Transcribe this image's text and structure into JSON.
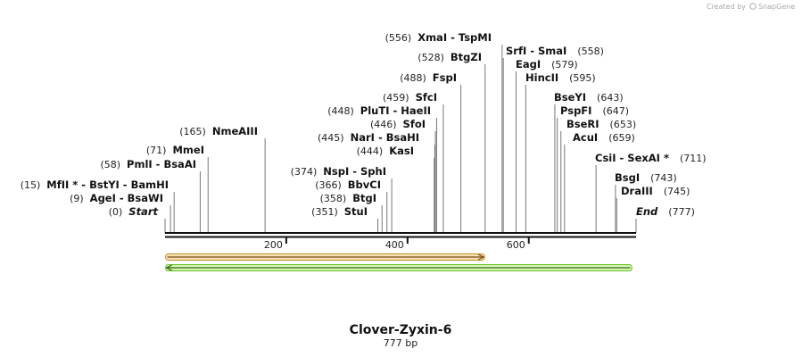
{
  "branding": {
    "text": "Created by",
    "product": "SnapGene"
  },
  "sequence": {
    "name": "Clover-Zyxin-6",
    "length_label": "777 bp",
    "length_bp": 777
  },
  "axis": {
    "ticks": [
      {
        "bp": 200,
        "label": "200"
      },
      {
        "bp": 400,
        "label": "400"
      },
      {
        "bp": 600,
        "label": "600"
      }
    ]
  },
  "features": [
    {
      "name": "forward-feature",
      "start": 1,
      "end": 527,
      "direction": "forward",
      "fill": "#f6e3b8",
      "stroke": "#c98a1c",
      "line": "#7a4a12"
    },
    {
      "name": "reverse-feature",
      "start": 1,
      "end": 770,
      "direction": "reverse",
      "fill": "#d8f5b4",
      "stroke": "#5fbf1f",
      "line": "#2e6b10"
    }
  ],
  "sites": [
    {
      "pos": "(0)",
      "label": "Start",
      "italic": true,
      "bp": 0
    },
    {
      "pos": "(9)",
      "label": "AgeI  -  BsaWI",
      "bp": 9
    },
    {
      "pos": "(15)",
      "label": "MfII *  -  BstYI  -  BamHI",
      "bp": 15
    },
    {
      "pos": "(58)",
      "label": "PmlI  -  BsaAI",
      "bp": 58
    },
    {
      "pos": "(71)",
      "label": "MmeI",
      "bp": 71
    },
    {
      "pos": "(165)",
      "label": "NmeAIII",
      "bp": 165
    },
    {
      "pos": "(351)",
      "label": "StuI",
      "bp": 351
    },
    {
      "pos": "(358)",
      "label": "BtgI",
      "bp": 358
    },
    {
      "pos": "(366)",
      "label": "BbvCI",
      "bp": 366
    },
    {
      "pos": "(374)",
      "label": "NspI  -  SphI",
      "bp": 374
    },
    {
      "pos": "(444)",
      "label": "KasI",
      "bp": 444
    },
    {
      "pos": "(445)",
      "label": "NarI  -  BsaHI",
      "bp": 445
    },
    {
      "pos": "(446)",
      "label": "SfoI",
      "bp": 446
    },
    {
      "pos": "(448)",
      "label": "PluTI  -  HaeII",
      "bp": 448
    },
    {
      "pos": "(459)",
      "label": "SfcI",
      "bp": 459
    },
    {
      "pos": "(488)",
      "label": "FspI",
      "bp": 488
    },
    {
      "pos": "(528)",
      "label": "BtgZI",
      "bp": 528
    },
    {
      "pos": "(556)",
      "label": "XmaI  -  TspMI",
      "bp": 556
    },
    {
      "pos": "(558)",
      "label": "SrfI  -  SmaI",
      "bp": 558,
      "pos_after": true
    },
    {
      "pos": "(579)",
      "label": "EagI",
      "bp": 579,
      "pos_after": true
    },
    {
      "pos": "(595)",
      "label": "HincII",
      "bp": 595,
      "pos_after": true
    },
    {
      "pos": "(643)",
      "label": "BseYI",
      "bp": 643,
      "pos_after": true
    },
    {
      "pos": "(647)",
      "label": "PspFI",
      "bp": 647,
      "pos_after": true
    },
    {
      "pos": "(653)",
      "label": "BseRI",
      "bp": 653,
      "pos_after": true
    },
    {
      "pos": "(659)",
      "label": "AcuI",
      "bp": 659,
      "pos_after": true
    },
    {
      "pos": "(711)",
      "label": "CsiI  -  SexAI *",
      "bp": 711,
      "pos_after": true
    },
    {
      "pos": "(743)",
      "label": "BsgI",
      "bp": 743,
      "pos_after": true
    },
    {
      "pos": "(745)",
      "label": "DraIII",
      "bp": 745,
      "pos_after": true
    },
    {
      "pos": "(777)",
      "label": "End",
      "italic": true,
      "bp": 777,
      "pos_after": true
    }
  ]
}
